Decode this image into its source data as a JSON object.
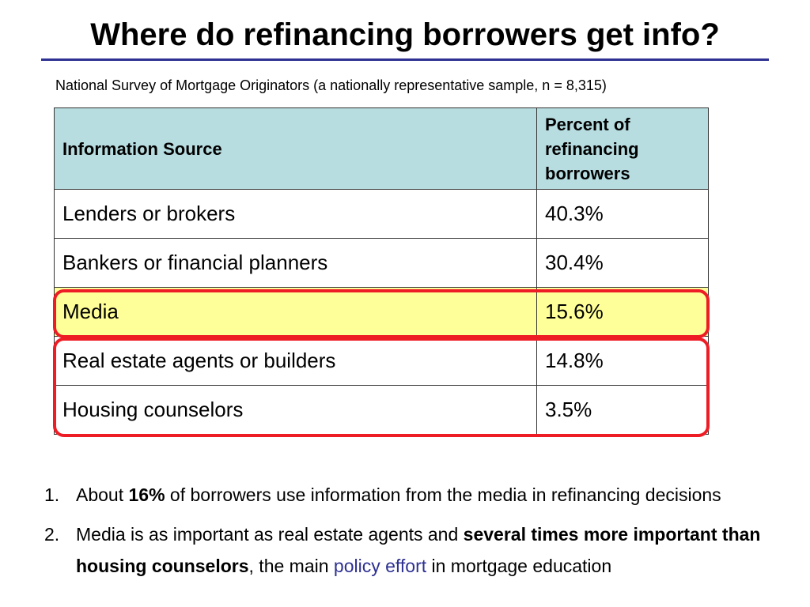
{
  "header": {
    "title": "Where do refinancing borrowers get info?",
    "subtitle": "National Survey of Mortgage Originators (a nationally representative sample, n = 8,315)"
  },
  "table": {
    "headers": [
      "Information Source",
      "Percent of refinancing borrowers"
    ],
    "rows": [
      {
        "source": "Lenders or brokers",
        "percent": "40.3%"
      },
      {
        "source": "Bankers or financial planners",
        "percent": "30.4%"
      },
      {
        "source": "Media",
        "percent": "15.6%"
      },
      {
        "source": "Real estate agents or builders",
        "percent": "14.8%"
      },
      {
        "source": "Housing counselors",
        "percent": "3.5%"
      }
    ]
  },
  "notes": [
    {
      "number": "1.",
      "part1": "About ",
      "bold1": "16%",
      "part2": " of borrowers use information from the media in refinancing decisions"
    },
    {
      "number": "2.",
      "part1": "Media is as important as real estate agents and ",
      "bold1": "several times more important than housing counselors",
      "part2": ", the main ",
      "link": "policy effort",
      "part3": " in mortgage education"
    }
  ],
  "colors": {
    "header_fill": "#b7dde1",
    "highlight_fill": "#ffff99",
    "ring": "#ee1c25",
    "rule": "#2e3192",
    "link": "#2e3192"
  }
}
